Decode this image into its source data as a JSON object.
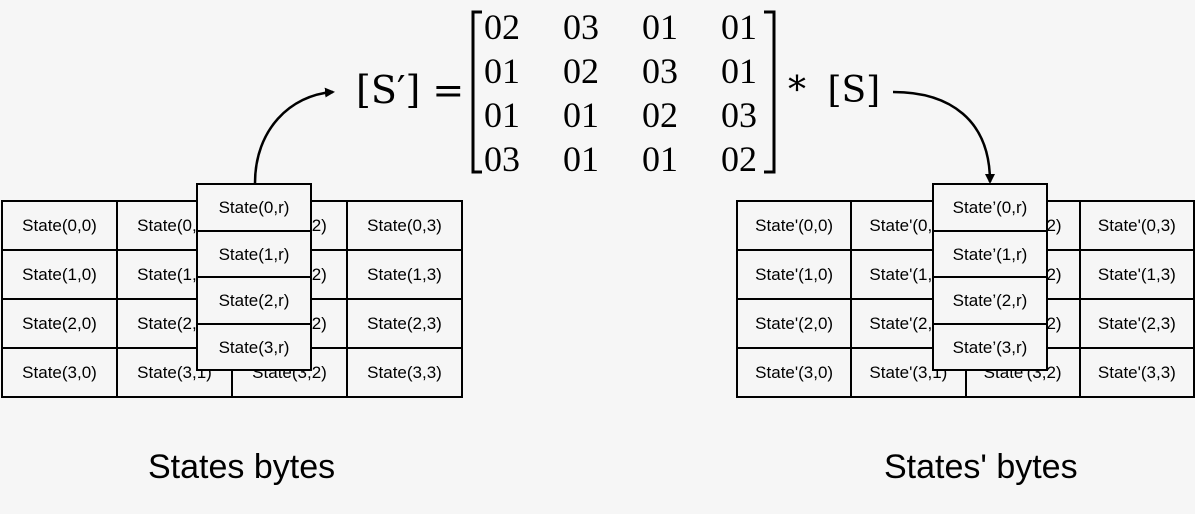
{
  "equation": {
    "lhs": "[S′] =",
    "operator": "*",
    "rhs": "[S]",
    "matrix": [
      [
        "02",
        "03",
        "01",
        "01"
      ],
      [
        "01",
        "02",
        "03",
        "01"
      ],
      [
        "01",
        "01",
        "02",
        "03"
      ],
      [
        "03",
        "01",
        "01",
        "02"
      ]
    ]
  },
  "left": {
    "caption": "States bytes",
    "grid": [
      [
        "State(0,0)",
        "State(0,1)",
        "State(0,2)",
        "State(0,3)"
      ],
      [
        "State(1,0)",
        "State(1,1)",
        "State(1,2)",
        "State(1,3)"
      ],
      [
        "State(2,0)",
        "State(2,1)",
        "State(2,2)",
        "State(2,3)"
      ],
      [
        "State(3,0)",
        "State(3,1)",
        "State(3,2)",
        "State(3,3)"
      ]
    ],
    "column": [
      "State(0,r)",
      "State(1,r)",
      "State(2,r)",
      "State(3,r)"
    ]
  },
  "right": {
    "caption": "States' bytes",
    "grid": [
      [
        "State'(0,0)",
        "State'(0,1)",
        "State'(0,2)",
        "State'(0,3)"
      ],
      [
        "State'(1,0)",
        "State'(1,1)",
        "State'(1,2)",
        "State'(1,3)"
      ],
      [
        "State'(2,0)",
        "State'(2,1)",
        "State'(2,2)",
        "State'(2,3)"
      ],
      [
        "State'(3,0)",
        "State'(3,1)",
        "State'(3,2)",
        "State'(3,3)"
      ]
    ],
    "column": [
      "State’(0,r)",
      "State’(1,r)",
      "State’(2,r)",
      "State’(3,r)"
    ]
  }
}
